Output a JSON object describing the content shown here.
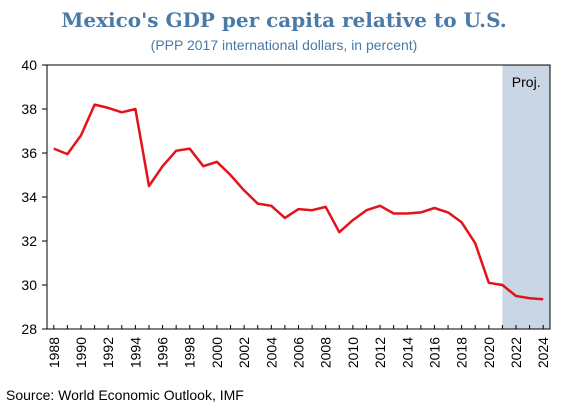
{
  "title": "Mexico's GDP per capita relative to U.S.",
  "subtitle": "(PPP 2017 international dollars, in percent)",
  "source": "Source: World Economic Outlook, IMF",
  "chart_data": {
    "type": "line",
    "title": "Mexico's GDP per capita relative to U.S.",
    "subtitle": "(PPP 2017 international dollars, in percent)",
    "xlabel": "",
    "ylabel": "",
    "ylim": [
      28,
      40
    ],
    "xlim": [
      1987.5,
      2024.5
    ],
    "yticks": [
      28,
      30,
      32,
      34,
      36,
      38,
      40
    ],
    "xticks": [
      1988,
      1990,
      1992,
      1994,
      1996,
      1998,
      2000,
      2002,
      2004,
      2006,
      2008,
      2010,
      2012,
      2014,
      2016,
      2018,
      2020,
      2022,
      2024
    ],
    "grid": false,
    "projection": {
      "start": 2021,
      "end": 2024.5,
      "label": "Proj.",
      "color": "#c9d6e3"
    },
    "series_color": "#e3131b",
    "x": [
      1988,
      1989,
      1990,
      1991,
      1992,
      1993,
      1994,
      1995,
      1996,
      1997,
      1998,
      1999,
      2000,
      2001,
      2002,
      2003,
      2004,
      2005,
      2006,
      2007,
      2008,
      2009,
      2010,
      2011,
      2012,
      2013,
      2014,
      2015,
      2016,
      2017,
      2018,
      2019,
      2020,
      2021,
      2022,
      2023,
      2024
    ],
    "values": [
      36.2,
      35.95,
      36.8,
      38.2,
      38.05,
      37.85,
      38.0,
      34.5,
      35.4,
      36.1,
      36.2,
      35.4,
      35.6,
      35.0,
      34.3,
      33.7,
      33.6,
      33.05,
      33.45,
      33.4,
      33.55,
      32.4,
      32.95,
      33.4,
      33.6,
      33.25,
      33.25,
      33.3,
      33.5,
      33.3,
      32.85,
      31.9,
      30.1,
      30.0,
      29.5,
      29.4,
      29.35
    ]
  }
}
